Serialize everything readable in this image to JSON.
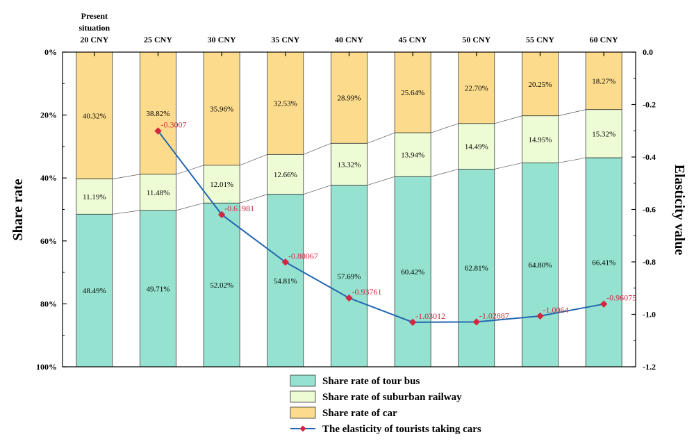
{
  "chart_data": {
    "type": "bar",
    "stacked": true,
    "categories": [
      "20 CNY",
      "25 CNY",
      "30 CNY",
      "35 CNY",
      "40 CNY",
      "45 CNY",
      "50 CNY",
      "55 CNY",
      "60 CNY"
    ],
    "category_prefix": "Present situation",
    "series": [
      {
        "name": "Share rate of car",
        "color": "#fcdc8c",
        "values": [
          40.32,
          38.82,
          35.96,
          32.53,
          28.99,
          25.64,
          22.7,
          20.25,
          18.27
        ],
        "labels": [
          "40.32%",
          "38.82%",
          "35.96%",
          "32.53%",
          "28.99%",
          "25.64%",
          "22.70%",
          "20.25%",
          "18.27%"
        ]
      },
      {
        "name": "Share rate of suburban railway",
        "color": "#eefcd6",
        "values": [
          11.19,
          11.48,
          12.01,
          12.66,
          13.32,
          13.94,
          14.49,
          14.95,
          15.32
        ],
        "labels": [
          "11.19%",
          "11.48%",
          "12.01%",
          "12.66%",
          "13.32%",
          "13.94%",
          "14.49%",
          "14.95%",
          "15.32%"
        ]
      },
      {
        "name": "Share rate of tour bus",
        "color": "#94e2cf",
        "values": [
          48.49,
          49.71,
          52.02,
          54.81,
          57.69,
          60.42,
          62.81,
          64.8,
          66.41
        ],
        "labels": [
          "48.49%",
          "49.71%",
          "52.02%",
          "54.81%",
          "57.69%",
          "60.42%",
          "62.81%",
          "64.80%",
          "66.41%"
        ]
      }
    ],
    "line_series": {
      "name": "The elasticity of tourists taking cars",
      "color": "#2366b0",
      "marker_color": "#d6263f",
      "x_categories": [
        "25 CNY",
        "30 CNY",
        "35 CNY",
        "40 CNY",
        "45 CNY",
        "50 CNY",
        "55 CNY",
        "60 CNY"
      ],
      "values": [
        -0.3007,
        -0.61981,
        -0.80067,
        -0.93761,
        -1.03012,
        -1.02887,
        -1.0064,
        -0.96075
      ],
      "labels": [
        "-0.3007",
        "-0.61981",
        "-0.80067",
        "-0.93761",
        "-1.03012",
        "-1.02887",
        "-1.0064",
        "-0.96075"
      ]
    },
    "y_left": {
      "label": "Share rate",
      "range": [
        0,
        100
      ],
      "inverted": true,
      "ticks": [
        "0%",
        "20%",
        "40%",
        "60%",
        "80%",
        "100%"
      ]
    },
    "y_right": {
      "label": "Elasticity value",
      "range": [
        0,
        -1.2
      ],
      "ticks": [
        "0.0",
        "-0.2",
        "-0.4",
        "-0.6",
        "-0.8",
        "-1.0",
        "-1.2"
      ]
    },
    "legend_position": "bottom",
    "legend_order": [
      "Share rate of tour bus",
      "Share rate of suburban railway",
      "Share rate of car",
      "The elasticity of tourists taking cars"
    ],
    "grid": false
  }
}
